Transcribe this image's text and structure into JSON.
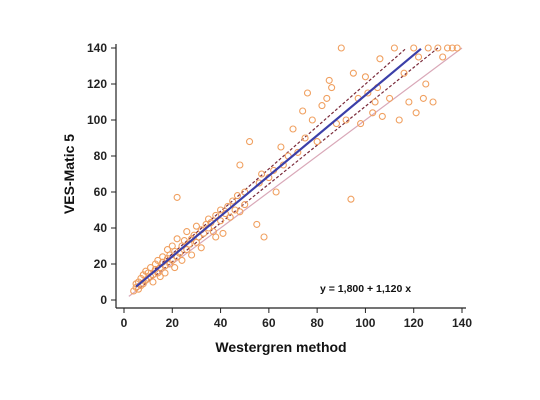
{
  "chart_data": {
    "type": "scatter",
    "xlabel": "Westergren method",
    "ylabel": "VES-Matic 5",
    "xlim": [
      0,
      140
    ],
    "ylim": [
      0,
      140
    ],
    "xticks": [
      "0",
      "20",
      "40",
      "60",
      "80",
      "100",
      "120",
      "140"
    ],
    "yticks": [
      "0",
      "20",
      "40",
      "60",
      "80",
      "100",
      "120",
      "140"
    ],
    "grid": false,
    "equation": "y = 1,800  +  1,120  x",
    "regression": {
      "intercept": 1.8,
      "slope": 1.12,
      "x_range": [
        5,
        123
      ],
      "color": "#3b3fa8"
    },
    "confidence_lines": [
      {
        "style": "dashed",
        "color": "#7a2a3a",
        "points": [
          [
            5,
            8
          ],
          [
            117,
            140
          ]
        ]
      },
      {
        "style": "dashed",
        "color": "#7a2a3a",
        "points": [
          [
            5,
            5
          ],
          [
            130,
            140
          ]
        ]
      }
    ],
    "identity_line": {
      "color": "#d9a8b8",
      "points": [
        [
          2,
          2
        ],
        [
          140,
          140
        ]
      ]
    },
    "marker": {
      "shape": "circle",
      "color": "#f0a060"
    },
    "points": [
      [
        4,
        5
      ],
      [
        5,
        7
      ],
      [
        5,
        9
      ],
      [
        6,
        6
      ],
      [
        6,
        10
      ],
      [
        7,
        8
      ],
      [
        7,
        12
      ],
      [
        8,
        9
      ],
      [
        8,
        14
      ],
      [
        9,
        11
      ],
      [
        9,
        16
      ],
      [
        10,
        12
      ],
      [
        10,
        15
      ],
      [
        11,
        13
      ],
      [
        11,
        18
      ],
      [
        12,
        14
      ],
      [
        12,
        10
      ],
      [
        13,
        17
      ],
      [
        13,
        20
      ],
      [
        14,
        15
      ],
      [
        14,
        22
      ],
      [
        15,
        18
      ],
      [
        15,
        13
      ],
      [
        16,
        21
      ],
      [
        16,
        24
      ],
      [
        17,
        19
      ],
      [
        17,
        15
      ],
      [
        18,
        23
      ],
      [
        18,
        28
      ],
      [
        19,
        20
      ],
      [
        19,
        25
      ],
      [
        20,
        22
      ],
      [
        20,
        30
      ],
      [
        21,
        18
      ],
      [
        21,
        27
      ],
      [
        22,
        24
      ],
      [
        22,
        34
      ],
      [
        23,
        26
      ],
      [
        24,
        30
      ],
      [
        24,
        22
      ],
      [
        25,
        33
      ],
      [
        26,
        28
      ],
      [
        26,
        38
      ],
      [
        27,
        31
      ],
      [
        28,
        34
      ],
      [
        28,
        25
      ],
      [
        29,
        36
      ],
      [
        30,
        32
      ],
      [
        30,
        41
      ],
      [
        31,
        35
      ],
      [
        32,
        39
      ],
      [
        32,
        29
      ],
      [
        33,
        37
      ],
      [
        34,
        42
      ],
      [
        35,
        40
      ],
      [
        35,
        45
      ],
      [
        36,
        43
      ],
      [
        37,
        38
      ],
      [
        38,
        47
      ],
      [
        38,
        35
      ],
      [
        40,
        44
      ],
      [
        40,
        50
      ],
      [
        41,
        37
      ],
      [
        42,
        48
      ],
      [
        43,
        52
      ],
      [
        44,
        46
      ],
      [
        45,
        55
      ],
      [
        46,
        50
      ],
      [
        47,
        58
      ],
      [
        48,
        49
      ],
      [
        50,
        53
      ],
      [
        50,
        60
      ],
      [
        52,
        88
      ],
      [
        22,
        57
      ],
      [
        48,
        75
      ],
      [
        55,
        42
      ],
      [
        56,
        65
      ],
      [
        57,
        70
      ],
      [
        58,
        35
      ],
      [
        60,
        68
      ],
      [
        62,
        72
      ],
      [
        63,
        60
      ],
      [
        65,
        85
      ],
      [
        66,
        75
      ],
      [
        68,
        80
      ],
      [
        70,
        95
      ],
      [
        72,
        82
      ],
      [
        74,
        105
      ],
      [
        75,
        90
      ],
      [
        76,
        115
      ],
      [
        78,
        100
      ],
      [
        80,
        88
      ],
      [
        82,
        108
      ],
      [
        84,
        112
      ],
      [
        85,
        122
      ],
      [
        86,
        118
      ],
      [
        88,
        98
      ],
      [
        90,
        140
      ],
      [
        92,
        100
      ],
      [
        94,
        56
      ],
      [
        95,
        126
      ],
      [
        97,
        112
      ],
      [
        98,
        98
      ],
      [
        100,
        124
      ],
      [
        101,
        115
      ],
      [
        103,
        104
      ],
      [
        104,
        110
      ],
      [
        105,
        118
      ],
      [
        106,
        134
      ],
      [
        107,
        102
      ],
      [
        110,
        112
      ],
      [
        112,
        140
      ],
      [
        114,
        100
      ],
      [
        116,
        126
      ],
      [
        118,
        110
      ],
      [
        120,
        140
      ],
      [
        121,
        104
      ],
      [
        122,
        135
      ],
      [
        124,
        112
      ],
      [
        125,
        120
      ],
      [
        126,
        140
      ],
      [
        128,
        110
      ],
      [
        130,
        140
      ],
      [
        132,
        135
      ],
      [
        134,
        140
      ],
      [
        136,
        140
      ],
      [
        138,
        140
      ]
    ]
  }
}
